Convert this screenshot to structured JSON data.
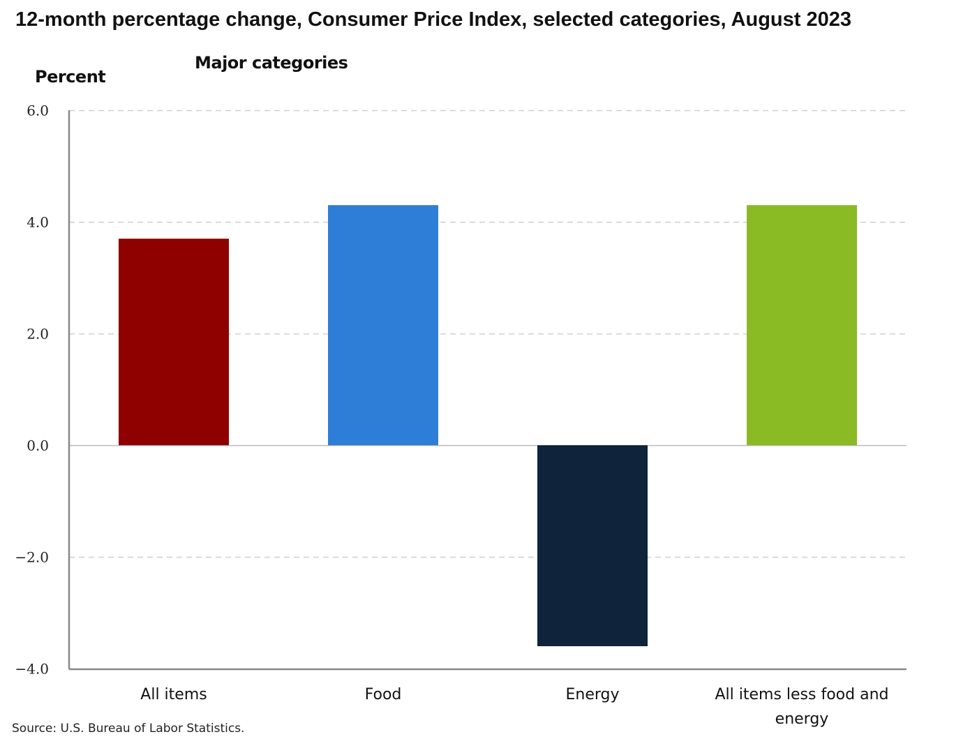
{
  "chart_data": {
    "type": "bar",
    "title": "12-month percentage change, Consumer Price Index, selected categories, August 2023",
    "subtitle": "Major categories",
    "xlabel": "",
    "ylabel": "Percent",
    "categories": [
      "All items",
      "Food",
      "Energy",
      "All items less food and energy"
    ],
    "category_lines": [
      [
        "All items"
      ],
      [
        "Food"
      ],
      [
        "Energy"
      ],
      [
        "All items less food and",
        "energy"
      ]
    ],
    "values": [
      3.7,
      4.3,
      -3.6,
      4.3
    ],
    "colors": [
      "#8f0000",
      "#2e7ed8",
      "#0f233b",
      "#8aba24"
    ],
    "ylim": [
      -4.0,
      6.0
    ],
    "yticks": [
      6.0,
      4.0,
      2.0,
      0.0,
      -2.0,
      -4.0
    ],
    "ytick_labels": [
      "6.0",
      "4.0",
      "2.0",
      "0.0",
      "−2.0",
      "−4.0"
    ],
    "grid": true,
    "legend": "none",
    "source": "Source: U.S. Bureau of Labor Statistics."
  }
}
